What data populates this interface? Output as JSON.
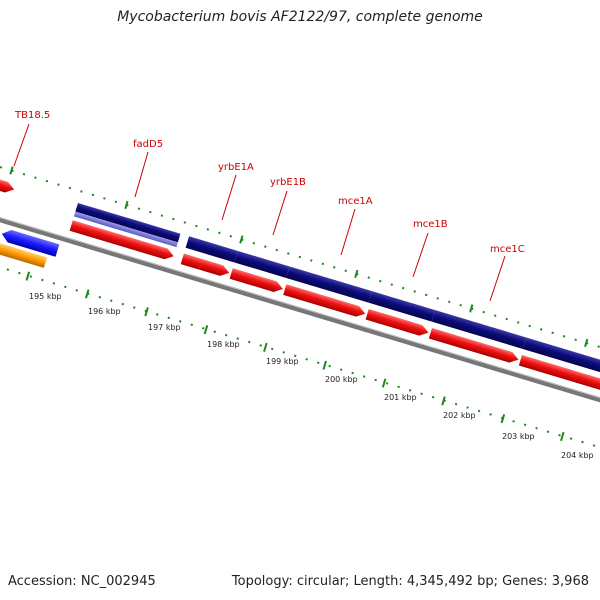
{
  "title": "Mycobacterium bovis AF2122/97, complete genome",
  "footer": {
    "accession": "Accession: NC_002945",
    "summary": "Topology: circular; Length: 4,345,492 bp; Genes: 3,968"
  },
  "gene_labels": [
    "TB18.5",
    "fadD5",
    "yrbE1A",
    "yrbE1B",
    "mce1A",
    "mce1B",
    "mce1C"
  ],
  "scale_ticks": [
    "195 kbp",
    "196 kbp",
    "197 kbp",
    "198 kbp",
    "199 kbp",
    "200 kbp",
    "201 kbp",
    "202 kbp",
    "203 kbp",
    "204 kbp"
  ],
  "colors": {
    "gene_label": "#cc0000",
    "forward_cds": "#0b0b7a",
    "forward_cds_light": "#6f6fd0",
    "cds_red": "#ee1111",
    "reverse_blue": "#1a1aff",
    "orange": "#ff9900",
    "backbone": "#777777",
    "tick_green": "#1a8a1a"
  }
}
